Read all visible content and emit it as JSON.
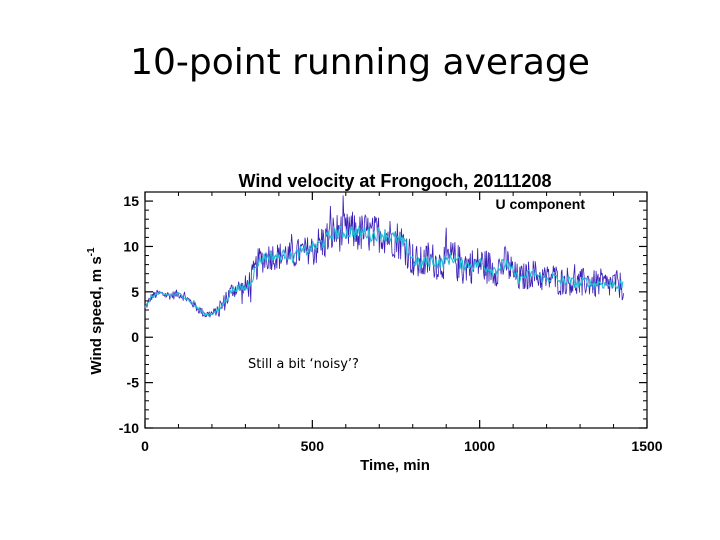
{
  "slide": {
    "title": "10-point running average",
    "annotation": "Still a bit ‘noisy’?"
  },
  "chart_data": {
    "type": "line",
    "title": "Wind velocity at Frongoch, 20111208",
    "xlabel": "Time, min",
    "ylabel_main": "Wind speed, m s",
    "ylabel_sup": "-1",
    "xlim": [
      0,
      1500
    ],
    "ylim": [
      -10,
      16
    ],
    "xticks": [
      0,
      500,
      1000,
      1500
    ],
    "yticks": [
      -10,
      -5,
      0,
      5,
      10,
      15
    ],
    "legend": {
      "text": "U component",
      "placement": "top-right",
      "color": "#3333cc"
    },
    "series": [
      {
        "name": "U component (raw)",
        "color": "#3b1fb8",
        "points": [
          [
            0,
            3.2
          ],
          [
            20,
            4.5
          ],
          [
            40,
            4.8
          ],
          [
            60,
            4.7
          ],
          [
            80,
            4.6
          ],
          [
            100,
            4.8
          ],
          [
            120,
            4.4
          ],
          [
            140,
            3.8
          ],
          [
            160,
            3.1
          ],
          [
            180,
            2.5
          ],
          [
            200,
            2.6
          ],
          [
            220,
            3.0
          ],
          [
            240,
            4.0
          ],
          [
            260,
            5.2
          ],
          [
            280,
            5.5
          ],
          [
            300,
            5.3
          ],
          [
            320,
            6.5
          ],
          [
            340,
            8.4
          ],
          [
            360,
            8.8
          ],
          [
            380,
            9.0
          ],
          [
            400,
            8.9
          ],
          [
            420,
            9.2
          ],
          [
            440,
            8.8
          ],
          [
            460,
            9.4
          ],
          [
            480,
            9.5
          ],
          [
            500,
            9.8
          ],
          [
            520,
            10.2
          ],
          [
            540,
            10.7
          ],
          [
            560,
            11.4
          ],
          [
            580,
            11.6
          ],
          [
            600,
            11.5
          ],
          [
            620,
            11.7
          ],
          [
            640,
            11.4
          ],
          [
            660,
            11.6
          ],
          [
            680,
            11.2
          ],
          [
            700,
            11.5
          ],
          [
            720,
            11.3
          ],
          [
            740,
            11.0
          ],
          [
            760,
            10.7
          ],
          [
            780,
            10.0
          ],
          [
            800,
            8.6
          ],
          [
            820,
            8.0
          ],
          [
            840,
            8.3
          ],
          [
            860,
            8.5
          ],
          [
            880,
            8.1
          ],
          [
            900,
            8.5
          ],
          [
            920,
            8.8
          ],
          [
            940,
            8.2
          ],
          [
            960,
            8.0
          ],
          [
            980,
            7.9
          ],
          [
            1000,
            8.2
          ],
          [
            1020,
            7.8
          ],
          [
            1040,
            7.5
          ],
          [
            1060,
            7.7
          ],
          [
            1080,
            8.2
          ],
          [
            1100,
            7.0
          ],
          [
            1120,
            6.4
          ],
          [
            1140,
            6.8
          ],
          [
            1160,
            7.1
          ],
          [
            1180,
            6.6
          ],
          [
            1200,
            6.4
          ],
          [
            1220,
            6.7
          ],
          [
            1240,
            6.1
          ],
          [
            1260,
            6.3
          ],
          [
            1280,
            6.0
          ],
          [
            1300,
            5.9
          ],
          [
            1320,
            6.2
          ],
          [
            1340,
            5.8
          ],
          [
            1360,
            6.0
          ],
          [
            1380,
            5.7
          ],
          [
            1400,
            5.9
          ],
          [
            1430,
            5.6
          ]
        ],
        "noise_amplitude": {
          "segments": [
            [
              0,
              220,
              0.5
            ],
            [
              220,
              300,
              1.0
            ],
            [
              300,
              500,
              1.6
            ],
            [
              500,
              800,
              2.2
            ],
            [
              800,
              1100,
              2.0
            ],
            [
              1100,
              1430,
              1.6
            ]
          ]
        }
      },
      {
        "name": "10-point running average",
        "color": "#22bcd6",
        "points": [
          [
            0,
            3.2
          ],
          [
            20,
            4.5
          ],
          [
            40,
            4.8
          ],
          [
            60,
            4.7
          ],
          [
            80,
            4.6
          ],
          [
            100,
            4.8
          ],
          [
            120,
            4.4
          ],
          [
            140,
            3.8
          ],
          [
            160,
            3.1
          ],
          [
            180,
            2.5
          ],
          [
            200,
            2.6
          ],
          [
            220,
            3.0
          ],
          [
            240,
            4.0
          ],
          [
            260,
            5.2
          ],
          [
            280,
            5.5
          ],
          [
            300,
            5.3
          ],
          [
            320,
            6.5
          ],
          [
            340,
            8.4
          ],
          [
            360,
            8.8
          ],
          [
            380,
            9.0
          ],
          [
            400,
            8.9
          ],
          [
            420,
            9.2
          ],
          [
            440,
            8.8
          ],
          [
            460,
            9.4
          ],
          [
            480,
            9.5
          ],
          [
            500,
            9.8
          ],
          [
            520,
            10.2
          ],
          [
            540,
            10.7
          ],
          [
            560,
            11.4
          ],
          [
            580,
            11.6
          ],
          [
            600,
            11.5
          ],
          [
            620,
            11.7
          ],
          [
            640,
            11.4
          ],
          [
            660,
            11.6
          ],
          [
            680,
            11.2
          ],
          [
            700,
            11.5
          ],
          [
            720,
            11.3
          ],
          [
            740,
            11.0
          ],
          [
            760,
            10.7
          ],
          [
            780,
            10.0
          ],
          [
            800,
            8.6
          ],
          [
            820,
            8.0
          ],
          [
            840,
            8.3
          ],
          [
            860,
            8.5
          ],
          [
            880,
            8.1
          ],
          [
            900,
            8.5
          ],
          [
            920,
            8.8
          ],
          [
            940,
            8.2
          ],
          [
            960,
            8.0
          ],
          [
            980,
            7.9
          ],
          [
            1000,
            8.2
          ],
          [
            1020,
            7.8
          ],
          [
            1040,
            7.5
          ],
          [
            1060,
            7.7
          ],
          [
            1080,
            8.2
          ],
          [
            1100,
            7.0
          ],
          [
            1120,
            6.4
          ],
          [
            1140,
            6.8
          ],
          [
            1160,
            7.1
          ],
          [
            1180,
            6.6
          ],
          [
            1200,
            6.4
          ],
          [
            1220,
            6.7
          ],
          [
            1240,
            6.1
          ],
          [
            1260,
            6.3
          ],
          [
            1280,
            6.0
          ],
          [
            1300,
            5.9
          ],
          [
            1320,
            6.2
          ],
          [
            1340,
            5.8
          ],
          [
            1360,
            6.0
          ],
          [
            1380,
            5.7
          ],
          [
            1400,
            5.9
          ],
          [
            1430,
            5.6
          ]
        ]
      }
    ]
  }
}
